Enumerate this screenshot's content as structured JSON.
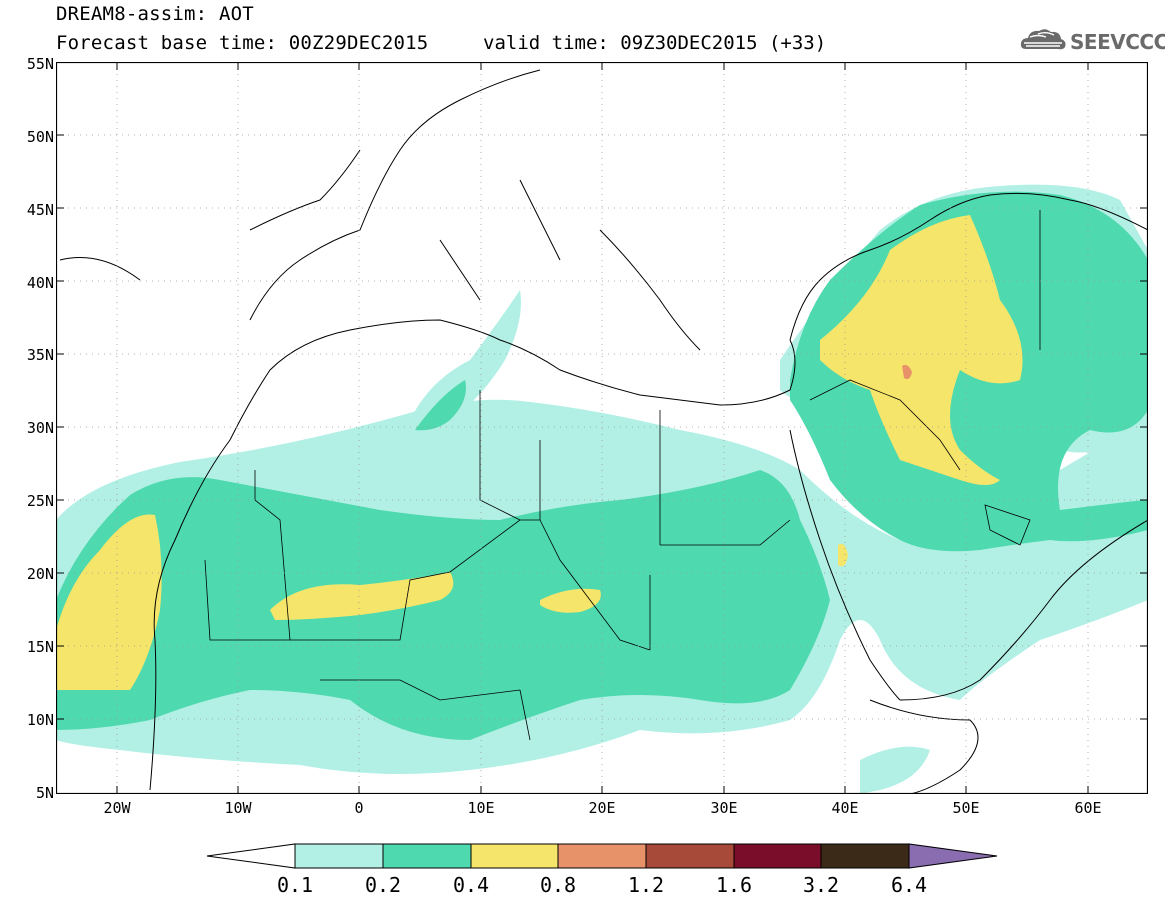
{
  "header": {
    "title_line1": "DREAM8-assim: AOT",
    "title_line2": "Forecast base time: 00Z29DEC2015",
    "valid_time": "valid time: 09Z30DEC2015 (+33)",
    "logo_text": "SEEVCCC",
    "logo_icon": "cloud-icon"
  },
  "map": {
    "lat_labels": [
      "55N",
      "50N",
      "45N",
      "40N",
      "35N",
      "30N",
      "25N",
      "20N",
      "15N",
      "10N",
      "5N"
    ],
    "lon_labels": [
      "20W",
      "10W",
      "0",
      "10E",
      "20E",
      "30E",
      "40E",
      "50E",
      "60E"
    ],
    "colors": {
      "level_0.1": "#b2f0e6",
      "level_0.2": "#4fd9ae",
      "level_0.4": "#f5e66b",
      "level_0.8": "#e8926a",
      "level_1.2": "#a84a3a",
      "level_1.6": "#7a0d2a",
      "level_3.2": "#3a2a17",
      "level_6.4": "#8a6cb0"
    }
  },
  "colorbar": {
    "labels": [
      "0.1",
      "0.2",
      "0.4",
      "0.8",
      "1.2",
      "1.6",
      "3.2",
      "6.4"
    ],
    "colors": [
      "#b2f0e6",
      "#4fd9ae",
      "#f5e66b",
      "#e8926a",
      "#a84a3a",
      "#7a0d2a",
      "#3a2a17"
    ],
    "under_color": "#ffffff",
    "over_color": "#8a6cb0"
  }
}
